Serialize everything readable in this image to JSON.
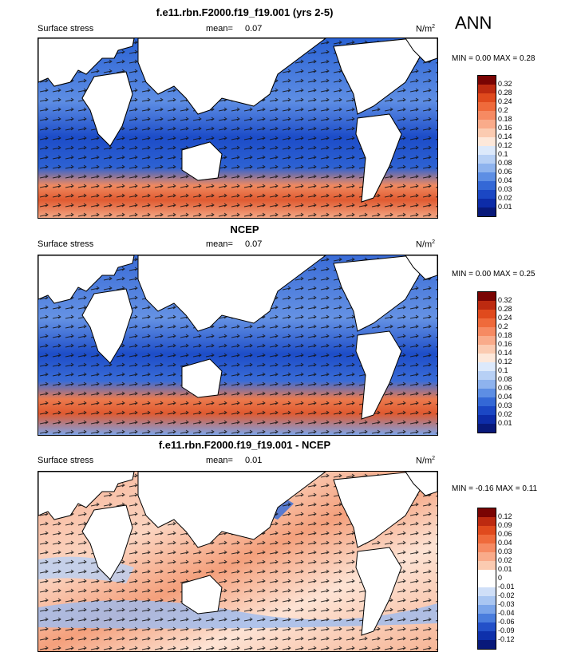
{
  "season": "ANN",
  "units": "N/m",
  "units_exp": "2",
  "panels": [
    {
      "title": "f.e11.rbn.F2000.f19_f19.001 (yrs 2-5)",
      "variable": "Surface stress",
      "mean_label": "mean=",
      "mean_value": "0.07",
      "minmax": "MIN =   0.00 MAX =   0.28",
      "colorbar": {
        "labels": [
          "0.32",
          "0.28",
          "0.24",
          "0.2",
          "0.18",
          "0.16",
          "0.14",
          "0.12",
          "0.1",
          "0.08",
          "0.06",
          "0.04",
          "0.03",
          "0.02",
          "0.01"
        ],
        "colors": [
          "#7a0403",
          "#bd2a10",
          "#e04a1d",
          "#ef6a3b",
          "#f68a62",
          "#f9ab8a",
          "#fbcbb1",
          "#fde8da",
          "#dce9fb",
          "#b7d0f5",
          "#8eb3ee",
          "#5d8ee4",
          "#3468d6",
          "#1b47c4",
          "#0d2ca8",
          "#08197a"
        ]
      }
    },
    {
      "title": "NCEP",
      "variable": "Surface stress",
      "mean_label": "mean=",
      "mean_value": "0.07",
      "minmax": "MIN =   0.00 MAX =   0.25",
      "colorbar": {
        "labels": [
          "0.32",
          "0.28",
          "0.24",
          "0.2",
          "0.18",
          "0.16",
          "0.14",
          "0.12",
          "0.1",
          "0.08",
          "0.06",
          "0.04",
          "0.03",
          "0.02",
          "0.01"
        ],
        "colors": [
          "#7a0403",
          "#bd2a10",
          "#e04a1d",
          "#ef6a3b",
          "#f68a62",
          "#f9ab8a",
          "#fbcbb1",
          "#fde8da",
          "#dce9fb",
          "#b7d0f5",
          "#8eb3ee",
          "#5d8ee4",
          "#3468d6",
          "#1b47c4",
          "#0d2ca8",
          "#08197a"
        ]
      }
    },
    {
      "title": "f.e11.rbn.F2000.f19_f19.001 - NCEP",
      "variable": "Surface stress",
      "mean_label": "mean=",
      "mean_value": "0.01",
      "minmax": "MIN = -0.16 MAX =   0.11",
      "colorbar": {
        "labels": [
          "0.12",
          "0.09",
          "0.06",
          "0.04",
          "0.03",
          "0.02",
          "0.01",
          "0",
          "-0.01",
          "-0.02",
          "-0.03",
          "-0.04",
          "-0.06",
          "-0.09",
          "-0.12"
        ],
        "colors": [
          "#7a0403",
          "#bd2a10",
          "#e04a1d",
          "#ef6a3b",
          "#f68a62",
          "#f9ab8a",
          "#fbcbb1",
          "#ffffff",
          "#ffffff",
          "#cfdff8",
          "#a9c6f2",
          "#7ba5ea",
          "#4a7ddd",
          "#2350c8",
          "#0e30ab",
          "#08197a"
        ]
      }
    }
  ]
}
